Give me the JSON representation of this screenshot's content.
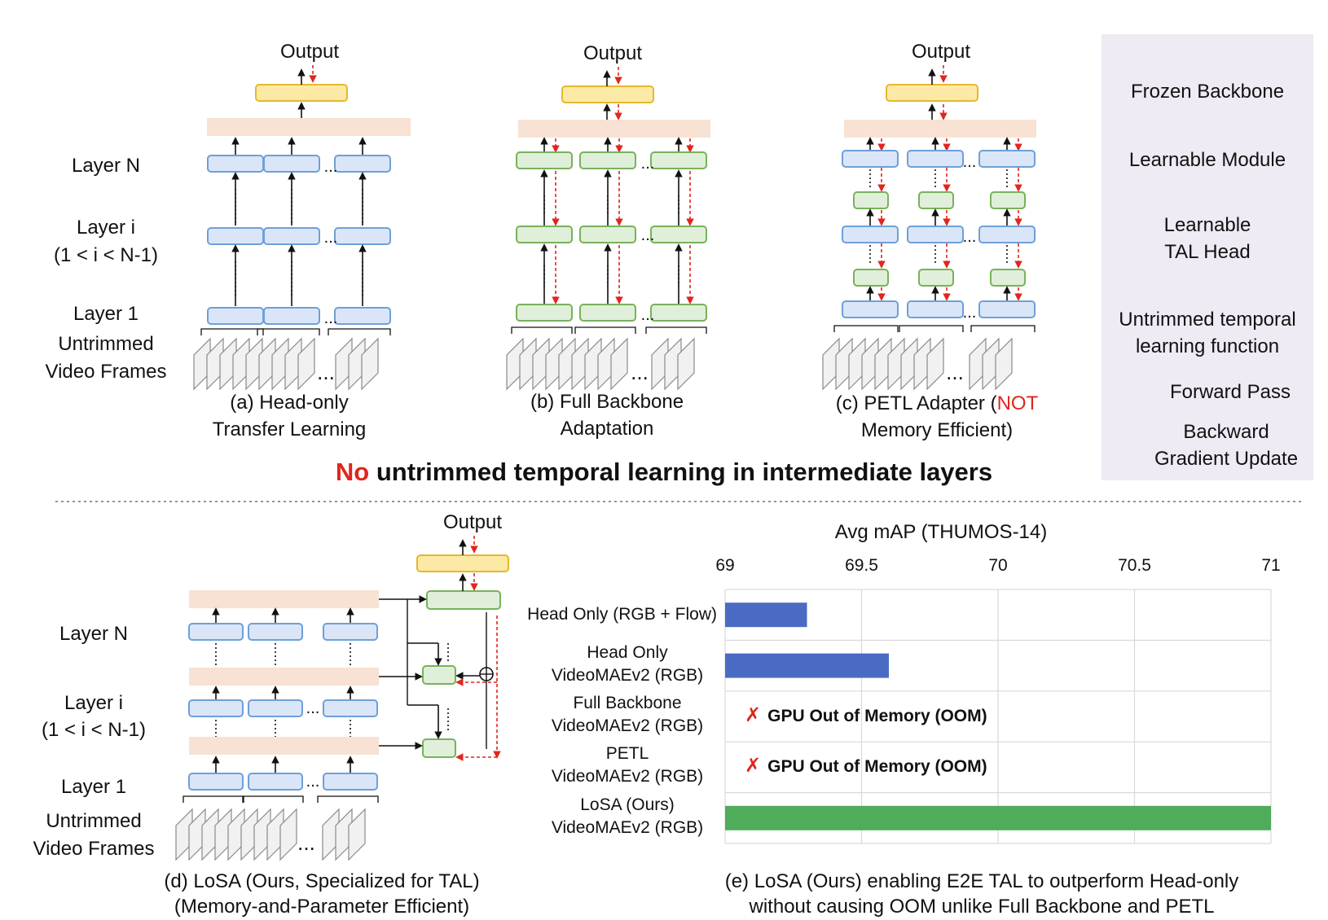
{
  "panels": {
    "a": {
      "output": "Output",
      "caption": [
        "(a) Head-only",
        "Transfer Learning"
      ]
    },
    "b": {
      "output": "Output",
      "caption": [
        "(b) Full Backbone",
        "Adaptation"
      ]
    },
    "c": {
      "output": "Output",
      "caption_prefix": "(c) PETL Adapter (",
      "caption_red": "NOT",
      "caption_line2": "Memory Efficient)"
    },
    "d": {
      "output": "Output",
      "caption": [
        "(d) LoSA (Ours, Specialized for TAL)",
        "(Memory-and-Parameter Efficient)"
      ]
    },
    "e": {
      "caption": [
        "(e) LoSA (Ours) enabling E2E TAL to outperform Head-only",
        "without causing OOM unlike Full Backbone and PETL"
      ]
    }
  },
  "row_labels_top": {
    "layer_n": "Layer N",
    "layer_i": "Layer i",
    "layer_i_range": "(1 < i < N-1)",
    "layer_1": "Layer 1",
    "frames": [
      "Untrimmed",
      "Video Frames"
    ]
  },
  "row_labels_bottom": {
    "layer_n": "Layer N",
    "layer_i": "Layer i",
    "layer_i_range": "(1 < i < N-1)",
    "layer_1": "Layer 1",
    "frames": [
      "Untrimmed",
      "Video Frames"
    ]
  },
  "ellipsis": "...",
  "headline": {
    "red": "No",
    "rest": " untrimmed temporal learning in intermediate layers"
  },
  "legend": {
    "frozen": "Frozen Backbone",
    "learnable": "Learnable Module",
    "tal_head": [
      "Learnable",
      "TAL Head"
    ],
    "temporal": [
      "Untrimmed temporal",
      "learning function"
    ],
    "forward": "Forward Pass",
    "backward": [
      "Backward",
      "Gradient Update"
    ]
  },
  "colors": {
    "frozen_fill": "#dae6f7",
    "frozen_stroke": "#6f9fd8",
    "learn_fill": "#e0efd9",
    "learn_stroke": "#78b25b",
    "head_fill": "#fde9a6",
    "head_stroke": "#e5b82c",
    "band_fill": "#f8e2d3",
    "grad": "#e0261d",
    "bar_blue": "#4a6bc4",
    "bar_green": "#4eac5b",
    "legend_bg": "#efeaf4"
  },
  "oom_label": "GPU Out of Memory (OOM)",
  "chart_data": {
    "type": "bar",
    "orientation": "horizontal",
    "title": "Avg mAP (THUMOS-14)",
    "xlim": [
      69,
      71
    ],
    "xticks": [
      "69",
      "69.5",
      "70",
      "70.5",
      "71"
    ],
    "categories": [
      [
        "Head Only",
        "(RGB + Flow)"
      ],
      [
        "Head Only",
        "VideoMAEv2 (RGB)"
      ],
      [
        "Full Backbone",
        "VideoMAEv2 (RGB)"
      ],
      [
        "PETL",
        "VideoMAEv2 (RGB)"
      ],
      [
        "LoSA (Ours)",
        "VideoMAEv2 (RGB)"
      ]
    ],
    "values": [
      69.3,
      69.6,
      null,
      null,
      71.0
    ],
    "grid": true
  }
}
